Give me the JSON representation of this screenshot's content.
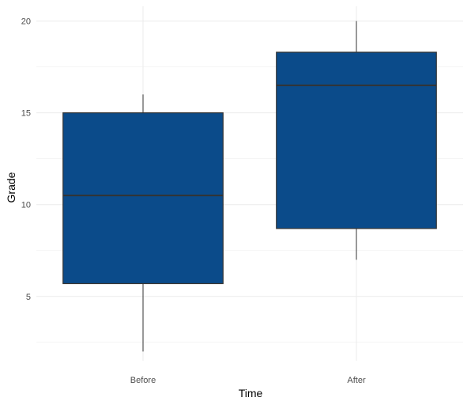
{
  "chart_data": {
    "type": "boxplot",
    "xlabel": "Time",
    "ylabel": "Grade",
    "ylim": [
      1.5,
      20.8
    ],
    "yticks": [
      5,
      10,
      15,
      20
    ],
    "grid": true,
    "fill_color": "#0b4b8a",
    "categories": [
      "Before",
      "After"
    ],
    "boxes": [
      {
        "category": "Before",
        "min": 2,
        "q1": 5.7,
        "median": 10.5,
        "q3": 15,
        "max": 16
      },
      {
        "category": "After",
        "min": 7,
        "q1": 8.7,
        "median": 16.5,
        "q3": 18.3,
        "max": 20
      }
    ]
  }
}
